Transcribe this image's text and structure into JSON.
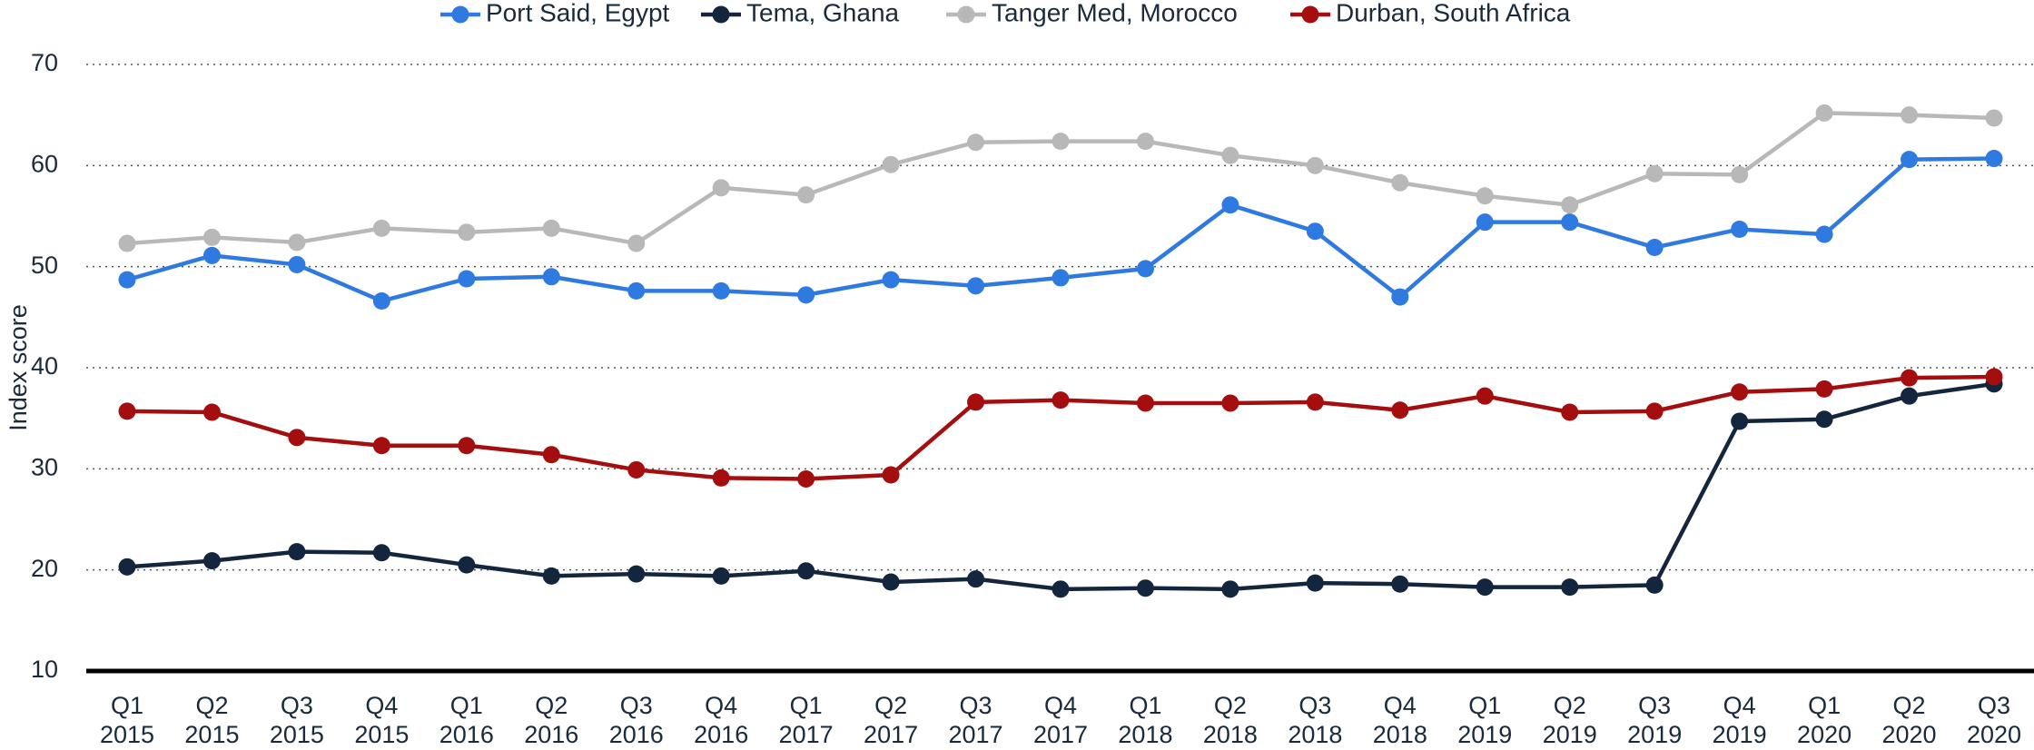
{
  "chart_data": {
    "type": "line",
    "y_label": "Index score",
    "categories": [
      [
        "Q1",
        "2015"
      ],
      [
        "Q2",
        "2015"
      ],
      [
        "Q3",
        "2015"
      ],
      [
        "Q4",
        "2015"
      ],
      [
        "Q1",
        "2016"
      ],
      [
        "Q2",
        "2016"
      ],
      [
        "Q3",
        "2016"
      ],
      [
        "Q4",
        "2016"
      ],
      [
        "Q1",
        "2017"
      ],
      [
        "Q2",
        "2017"
      ],
      [
        "Q3",
        "2017"
      ],
      [
        "Q4",
        "2017"
      ],
      [
        "Q1",
        "2018"
      ],
      [
        "Q2",
        "2018"
      ],
      [
        "Q3",
        "2018"
      ],
      [
        "Q4",
        "2018"
      ],
      [
        "Q1",
        "2019"
      ],
      [
        "Q2",
        "2019"
      ],
      [
        "Q3",
        "2019"
      ],
      [
        "Q4",
        "2019"
      ],
      [
        "Q1",
        "2020"
      ],
      [
        "Q2",
        "2020"
      ],
      [
        "Q3",
        "2020"
      ]
    ],
    "series": [
      {
        "name": "Port Said, Egypt",
        "color": "#2e7ae0",
        "values": [
          48.7,
          51.1,
          50.2,
          46.6,
          48.8,
          49.0,
          47.6,
          47.6,
          47.2,
          48.7,
          48.1,
          48.9,
          49.8,
          56.1,
          53.5,
          47.0,
          54.4,
          54.4,
          51.9,
          53.7,
          53.2,
          60.6,
          60.7
        ]
      },
      {
        "name": "Tema, Ghana",
        "color": "#13263d",
        "values": [
          20.3,
          20.9,
          21.8,
          21.7,
          20.5,
          19.4,
          19.6,
          19.4,
          19.9,
          18.8,
          19.1,
          18.1,
          18.2,
          18.1,
          18.7,
          18.6,
          18.3,
          18.3,
          18.5,
          34.7,
          34.9,
          37.2,
          38.4
        ]
      },
      {
        "name": "Tanger Med, Morocco",
        "color": "#b8b8b8",
        "values": [
          52.3,
          52.9,
          52.4,
          53.8,
          53.4,
          53.8,
          52.3,
          57.8,
          57.1,
          60.1,
          62.3,
          62.4,
          62.4,
          61.0,
          60.0,
          58.3,
          57.0,
          56.1,
          59.2,
          59.1,
          65.2,
          65.0,
          64.7
        ]
      },
      {
        "name": "Durban, South Africa",
        "color": "#a50e0e",
        "values": [
          35.7,
          35.6,
          33.1,
          32.3,
          32.3,
          31.4,
          29.9,
          29.1,
          29.0,
          29.4,
          36.6,
          36.8,
          36.5,
          36.5,
          36.6,
          35.8,
          37.2,
          35.6,
          35.7,
          37.6,
          37.9,
          39.0,
          39.1
        ]
      }
    ],
    "ylim": [
      10,
      70
    ],
    "yticks": [
      10,
      20,
      30,
      40,
      50,
      60,
      70
    ],
    "grid": true
  }
}
